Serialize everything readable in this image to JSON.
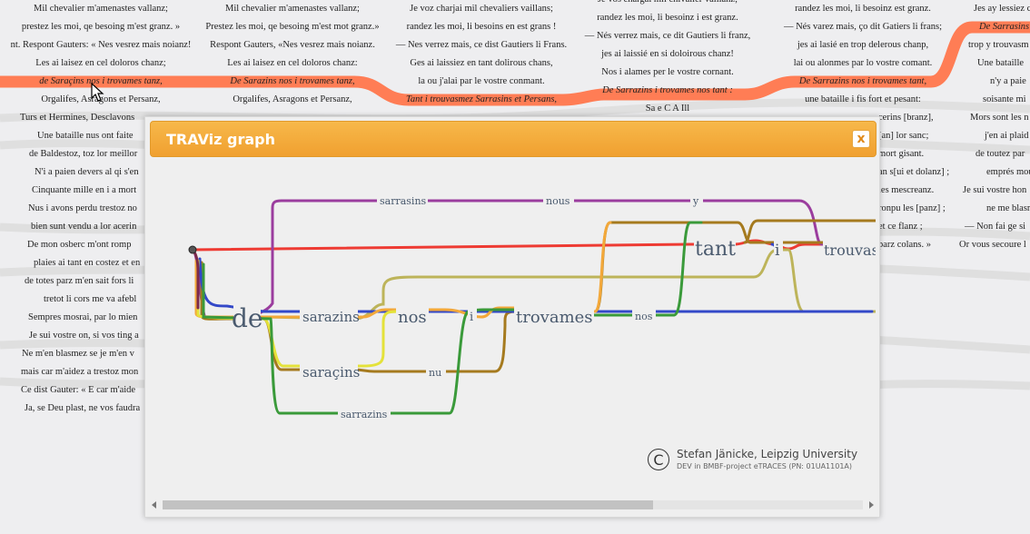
{
  "background_columns": [
    {
      "lines": [
        "Mil chevalier m'amenastes vallanz;",
        "prestez les moi, qe besoing m'est granz. »",
        "nt. Respont Gauters: « Nes vesrez mais noianz!",
        "Les ai laisez en cel doloros chanz;",
        "de Saraçins nos i trovames tanz,",
        "Orgalifes, Asragons et Persanz,",
        "Turs et Hermines, Desclavons",
        "Une bataille nus ont faite",
        "de Baldestoz, toz lor meillor",
        "N'i a paien devers al qi s'en",
        "Cinquante mille en i a mort",
        "Nus i avons perdu trestoz no",
        "bien sunt vendu a lor acerin",
        "De mon osberc m'ont romp",
        "plaies ai tant en costez et en",
        "de totes parz m'en sait fors li",
        "tretot li cors me va afebl",
        "Sempres mosrai, par lo mien",
        "Je sui vostre on, si vos ting a",
        "Ne m'en blasmez se je m'en v",
        "mais car m'aidez a trestoz mon",
        "Ce dist Gauter: « E car m'aide",
        "Ja, se Deu plast, ne vos faudra"
      ]
    },
    {
      "lines": [
        "Mil chevalier m'amenastes vallanz;",
        "Prestez les moi, qe besoing m'est mot granz.»",
        "Respont Gauters, «Nes vesrez mais noianz.",
        "Les ai laisez en cel doloros chanz:",
        "De Sarazins nos i trovames tanz,",
        "Orgalifes, Asragons et Persanz,"
      ]
    },
    {
      "lines": [
        "Je voz charjai mil chevaliers vaillans;",
        "randez les moi, li besoins en est grans !",
        "— Nes verrez mais, ce dist Gautiers li Frans.",
        "Ges ai laissiez en tant dolirous chans,",
        "la ou j'alai par le vostre conmant.",
        "Tant i trouvasmez Sarrasins et Persans,"
      ]
    },
    {
      "lines": [
        "Je vos chargai mil chivalier vaillanz;",
        "randez les moi, li besoinz i est granz.",
        "— Nés verrez mais, ce dit Gautiers li franz,",
        "jes ai laissié en si doloirous chanz!",
        "Nos i alames per le vostre cornant.",
        "De Sarrazins i trovames nos tant :",
        "Sa   e   C   A   Ill"
      ]
    },
    {
      "lines": [
        "randez les moi, li besoinz est granz.",
        "— Nés varez mais, ço dit Gatiers li frans;",
        "jes ai lasié en trop delerous chanp,",
        "lai ou alonmes par lo vostre comant.",
        "De Sarrazins nos i trovames tant,",
        "une bataille i fis fort et pesant:",
        "cerins [branz],",
        "[an] lor sanc;",
        "mort gisant.",
        "an s[ui et dolanz] ;",
        "les mescreanz.",
        "ronpu les [panz] ;",
        "et ce flanz ;",
        "parz colans. »"
      ]
    },
    {
      "lines": [
        "Jes ay lessiez c",
        "De Sarrasins",
        "trop y trouvasm",
        "Une bataille",
        "n'y a paie",
        "soisante mi",
        "Mors sont les n",
        "j'en ai plaid",
        "de toutez par",
        "emprés mou",
        "Je sui vostre hon",
        "ne me blasm",
        "— Non fai ge si",
        "Or vous secoure l"
      ]
    }
  ],
  "dialog": {
    "title": "TRAViz graph",
    "close_label": "x"
  },
  "graph": {
    "words": {
      "de": "de",
      "sarazins": "sarazins",
      "sarazins_cedil": "saraçins",
      "sarrazins_bottom": "sarrazins",
      "sarrasins_top": "sarrasins",
      "nos": "nos",
      "nous": "nous",
      "nu": "nu",
      "i1": "i",
      "trovames": "trovames",
      "nos2": "nos",
      "tant": "tant",
      "y": "y",
      "i2": "i",
      "trouvasmez": "trouvasmez"
    },
    "colors": {
      "red": "#ee3b33",
      "purple": "#9b3d9e",
      "blue": "#3348c8",
      "orange": "#f3a83a",
      "yellow": "#e4e23a",
      "green": "#3a9a3a",
      "brown": "#a57a1e",
      "olive": "#bdb45a",
      "highlight": "#ff7d55"
    }
  },
  "credits": {
    "symbol": "C",
    "line1": "Stefan Jänicke, Leipzig University",
    "line2": "DEV in BMBF-project eTRACES (PN: 01UA1101A)"
  }
}
